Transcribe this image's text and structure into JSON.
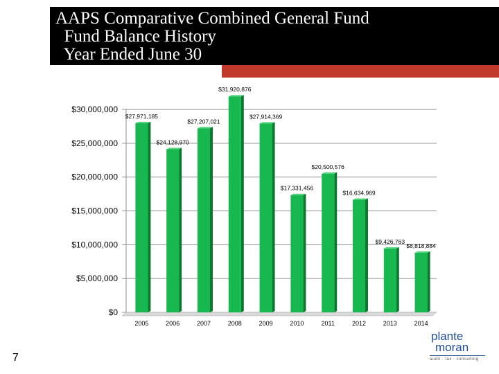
{
  "slide": {
    "title": "AAPS Comparative Combined General Fund\n  Fund Balance History\n  Year Ended June 30",
    "page_number": "7"
  },
  "logo": {
    "line1": "plante",
    "line2": "moran",
    "tagline": "audit · tax · consulting"
  },
  "colors": {
    "bar": "#17b84f",
    "bar_side": "#0a7a30",
    "title_bar": "#000000",
    "accent": "#c0392b"
  },
  "chart_data": {
    "type": "bar",
    "categories": [
      "2005",
      "2006",
      "2007",
      "2008",
      "2009",
      "2010",
      "2011",
      "2012",
      "2013",
      "2014"
    ],
    "values": [
      27971185,
      24128970,
      27207021,
      31920876,
      27914369,
      17331456,
      20500576,
      16634969,
      9426763,
      8818884
    ],
    "data_labels": [
      "$27,971,185",
      "$24,128,970",
      "$27,207,021",
      "$31,920,876",
      "$27,914,369",
      "$17,331,456",
      "$20,500,576",
      "$16,634,969",
      "$9,426,763",
      "$8,818,884"
    ],
    "y_ticks": [
      0,
      5000000,
      10000000,
      15000000,
      20000000,
      25000000,
      30000000
    ],
    "y_tick_labels": [
      "$0",
      "$5,000,000",
      "$10,000,000",
      "$15,000,000",
      "$20,000,000",
      "$25,000,000",
      "$30,000,000"
    ],
    "ylim": [
      0,
      30000000
    ],
    "grid": true,
    "title": "",
    "xlabel": "",
    "ylabel": ""
  }
}
